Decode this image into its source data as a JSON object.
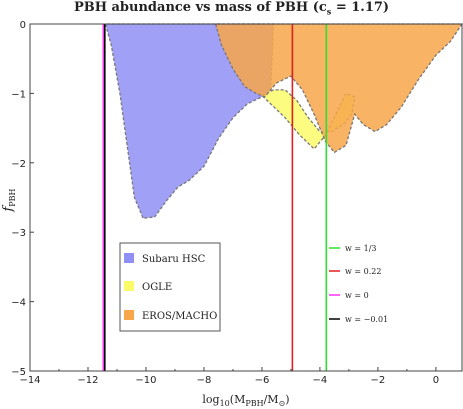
{
  "chart_data": {
    "type": "area",
    "title": "PBH abundance vs mass of PBH (c",
    "title_sub": "s",
    "title_tail": " = 1.17)",
    "xlabel_main": "log",
    "xlabel_sub1": "10",
    "xlabel_mid": "(M",
    "xlabel_sub2": "PBH",
    "xlabel_mid2": "/M",
    "xlabel_sub3": "⊙",
    "xlabel_end": ")",
    "ylabel_main": "f",
    "ylabel_sub": "PBH",
    "xlim": [
      -14,
      0.9
    ],
    "ylim": [
      -5,
      0
    ],
    "xticks": [
      -14,
      -12,
      -10,
      -8,
      -6,
      -4,
      -2,
      0
    ],
    "xtick_labels": [
      "−14",
      "−12",
      "−10",
      "−8",
      "−6",
      "−4",
      "−2",
      "0"
    ],
    "yticks": [
      0,
      -1,
      -2,
      -3,
      -4,
      -5
    ],
    "ytick_labels": [
      "0",
      "−1",
      "−2",
      "−3",
      "−4",
      "−5"
    ],
    "regions": [
      {
        "name": "Subaru HSC",
        "color": "#8f8ff5",
        "boundary": [
          [
            -11.4,
            0
          ],
          [
            -11.2,
            -0.3
          ],
          [
            -10.9,
            -1.0
          ],
          [
            -10.6,
            -1.9
          ],
          [
            -10.4,
            -2.5
          ],
          [
            -10.1,
            -2.8
          ],
          [
            -9.7,
            -2.78
          ],
          [
            -9.3,
            -2.55
          ],
          [
            -8.9,
            -2.35
          ],
          [
            -8.5,
            -2.25
          ],
          [
            -8.0,
            -2.05
          ],
          [
            -7.5,
            -1.65
          ],
          [
            -7.0,
            -1.35
          ],
          [
            -6.5,
            -1.15
          ],
          [
            -6.0,
            -1.05
          ],
          [
            -5.7,
            -0.95
          ],
          [
            -5.6,
            0
          ]
        ]
      },
      {
        "name": "OGLE",
        "color": "#fbfb6a",
        "boundary": [
          [
            -6.0,
            -1.03
          ],
          [
            -5.6,
            -0.95
          ],
          [
            -5.2,
            -0.95
          ],
          [
            -4.8,
            -1.1
          ],
          [
            -4.4,
            -1.35
          ],
          [
            -4.0,
            -1.55
          ],
          [
            -3.6,
            -1.55
          ],
          [
            -3.2,
            -1.45
          ],
          [
            -2.9,
            -1.3
          ],
          [
            -2.8,
            -1.05
          ],
          [
            -3.1,
            -1.0
          ],
          [
            -3.8,
            -1.6
          ],
          [
            -4.2,
            -1.8
          ],
          [
            -4.7,
            -1.6
          ],
          [
            -5.2,
            -1.35
          ],
          [
            -5.7,
            -1.15
          ]
        ]
      },
      {
        "name": "EROS/MACHO",
        "color": "#f7a64a",
        "boundary": [
          [
            -7.6,
            0
          ],
          [
            -7.4,
            -0.3
          ],
          [
            -7.0,
            -0.65
          ],
          [
            -6.6,
            -0.9
          ],
          [
            -6.2,
            -1.0
          ],
          [
            -5.9,
            -1.05
          ],
          [
            -5.5,
            -0.85
          ],
          [
            -5.0,
            -0.75
          ],
          [
            -4.6,
            -0.95
          ],
          [
            -4.2,
            -1.3
          ],
          [
            -3.8,
            -1.7
          ],
          [
            -3.5,
            -1.85
          ],
          [
            -3.1,
            -1.75
          ],
          [
            -2.8,
            -1.3
          ],
          [
            -2.5,
            -1.45
          ],
          [
            -2.1,
            -1.55
          ],
          [
            -1.7,
            -1.45
          ],
          [
            -1.2,
            -1.2
          ],
          [
            -0.6,
            -0.8
          ],
          [
            0.0,
            -0.45
          ],
          [
            0.5,
            -0.25
          ],
          [
            0.9,
            0
          ]
        ]
      }
    ],
    "vertical_lines": [
      {
        "name": "w = 1/3",
        "x": -3.78,
        "color": "#30e030"
      },
      {
        "name": "w = 0.22",
        "x": -4.95,
        "color": "#e02020"
      },
      {
        "name": "w = 0",
        "x": -11.47,
        "color": "#ff30ff"
      },
      {
        "name": "w = −0.01",
        "x": -11.42,
        "color": "#000000"
      }
    ],
    "legend_regions_placement": "lower-left-center",
    "legend_lines_placement": "lower-right",
    "grid": false
  }
}
